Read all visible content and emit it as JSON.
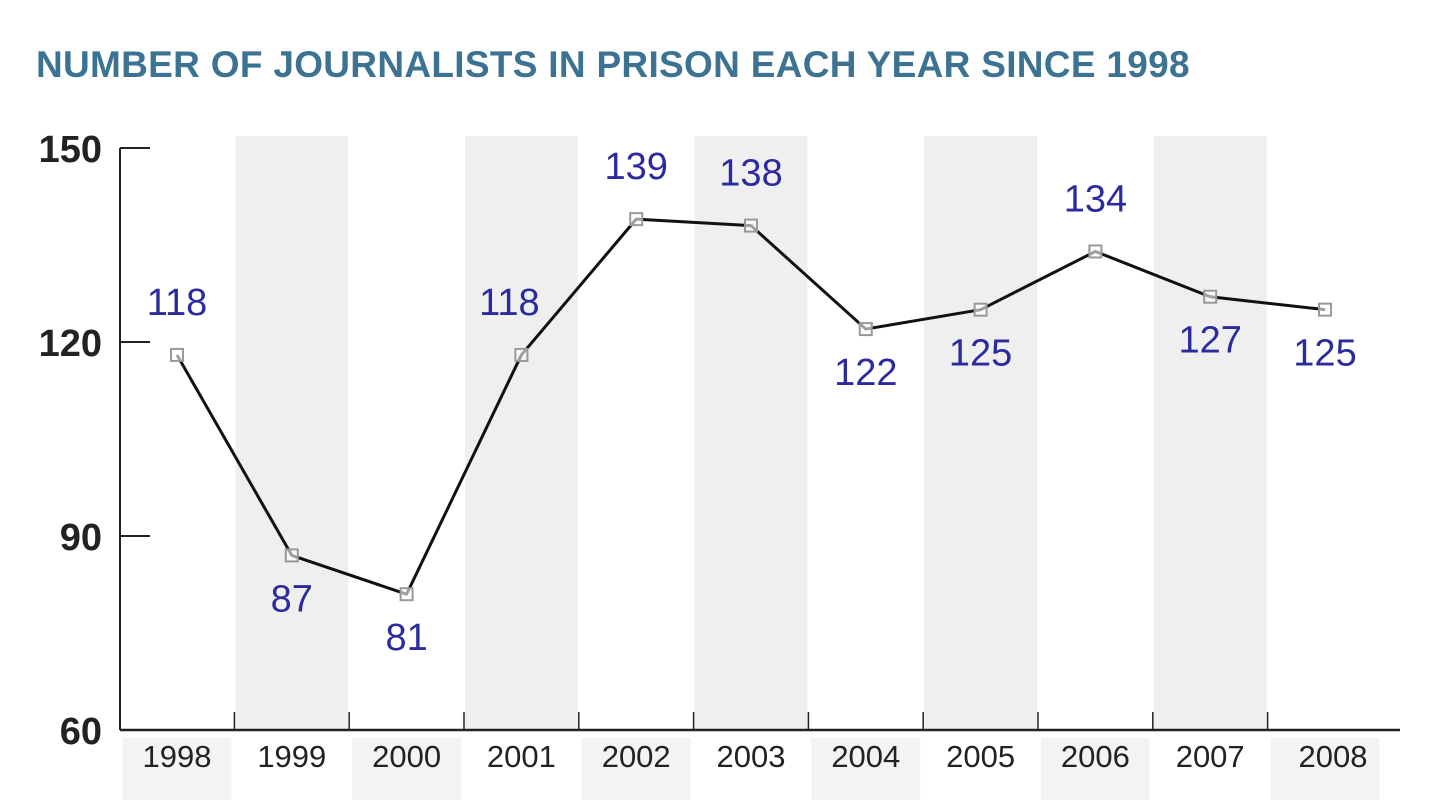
{
  "chart_data": {
    "type": "line",
    "title": "NUMBER OF JOURNALISTS IN PRISON EACH YEAR SINCE 1998",
    "xlabel": "",
    "ylabel": "",
    "categories": [
      "1998",
      "1999",
      "2000",
      "2001",
      "2002",
      "2003",
      "2004",
      "2005",
      "2006",
      "2007",
      "2008"
    ],
    "values": [
      118,
      87,
      81,
      118,
      139,
      138,
      122,
      125,
      134,
      127,
      125
    ],
    "data_label_positions": [
      "above",
      "below",
      "below",
      "above",
      "above",
      "above",
      "below",
      "below",
      "above",
      "below",
      "below"
    ],
    "ylim": [
      60,
      150
    ],
    "yticks": [
      60,
      90,
      120,
      150
    ],
    "grid": false,
    "alternating_bands": true,
    "colors": {
      "title": "#3c7393",
      "line": "#111111",
      "data_label": "#2b2b9e",
      "band": "#efefef",
      "marker": "#999999"
    }
  }
}
